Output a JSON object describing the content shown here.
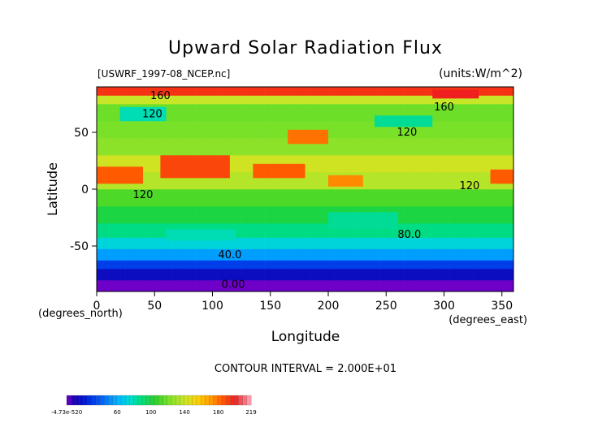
{
  "chart_data": {
    "type": "heatmap",
    "title": "Upward Solar Radiation Flux",
    "subtitle_left": "[USWRF_1997-08_NCEP.nc]",
    "subtitle_right": "(units:W/m^2)",
    "xlabel": "Longitude",
    "ylabel": "Latitude",
    "x_unit_label": "(degrees_east)",
    "y_unit_label": "(degrees_north)",
    "xlim": [
      0,
      360
    ],
    "ylim": [
      -90,
      90
    ],
    "x_ticks": [
      0,
      50,
      100,
      150,
      200,
      250,
      300,
      350
    ],
    "y_ticks": [
      -50,
      0,
      50
    ],
    "contour_interval_text": "CONTOUR INTERVAL = 2.000E+01",
    "contour_labels": [
      {
        "text": "160",
        "lon": 55,
        "lat": 82
      },
      {
        "text": "160",
        "lon": 300,
        "lat": 72
      },
      {
        "text": "120",
        "lon": 48,
        "lat": 66
      },
      {
        "text": "120",
        "lon": 268,
        "lat": 50
      },
      {
        "text": "120",
        "lon": 40,
        "lat": -5
      },
      {
        "text": "120",
        "lon": 322,
        "lat": 3
      },
      {
        "text": "80.0",
        "lon": 270,
        "lat": -40
      },
      {
        "text": "40.0",
        "lon": 115,
        "lat": -58
      },
      {
        "text": "0.00",
        "lon": 118,
        "lat": -84
      }
    ],
    "colorbar": {
      "min_label": "-4.73e-520",
      "max_label": "219",
      "tick_labels": [
        {
          "text": "60",
          "value": 60
        },
        {
          "text": "100",
          "value": 100
        },
        {
          "text": "140",
          "value": 140
        },
        {
          "text": "180",
          "value": 180
        }
      ],
      "vmin": 0,
      "vmax": 219
    },
    "latitude_bands": [
      {
        "lat_min": -90,
        "lat_max": -80,
        "value": 0
      },
      {
        "lat_min": -80,
        "lat_max": -70,
        "value": 15
      },
      {
        "lat_min": -70,
        "lat_max": -62,
        "value": 32
      },
      {
        "lat_min": -62,
        "lat_max": -52,
        "value": 55
      },
      {
        "lat_min": -52,
        "lat_max": -42,
        "value": 72
      },
      {
        "lat_min": -42,
        "lat_max": -30,
        "value": 88
      },
      {
        "lat_min": -30,
        "lat_max": -15,
        "value": 100
      },
      {
        "lat_min": -15,
        "lat_max": 0,
        "value": 112
      },
      {
        "lat_min": 0,
        "lat_max": 15,
        "value": 135
      },
      {
        "lat_min": 15,
        "lat_max": 30,
        "value": 142
      },
      {
        "lat_min": 30,
        "lat_max": 45,
        "value": 125
      },
      {
        "lat_min": 45,
        "lat_max": 60,
        "value": 120
      },
      {
        "lat_min": 60,
        "lat_max": 75,
        "value": 118
      },
      {
        "lat_min": 75,
        "lat_max": 82,
        "value": 140
      },
      {
        "lat_min": 82,
        "lat_max": 90,
        "value": 195
      }
    ],
    "hotspots": [
      {
        "lon_min": 0,
        "lon_max": 40,
        "lat_min": 5,
        "lat_max": 20,
        "value": 185
      },
      {
        "lon_min": 55,
        "lon_max": 115,
        "lat_min": 10,
        "lat_max": 30,
        "value": 190
      },
      {
        "lon_min": 135,
        "lon_max": 180,
        "lat_min": 10,
        "lat_max": 22,
        "value": 185
      },
      {
        "lon_min": 165,
        "lon_max": 200,
        "lat_min": 40,
        "lat_max": 52,
        "value": 180
      },
      {
        "lon_min": 200,
        "lon_max": 230,
        "lat_min": 2,
        "lat_max": 12,
        "value": 175
      },
      {
        "lon_min": 290,
        "lon_max": 330,
        "lat_min": 80,
        "lat_max": 88,
        "value": 200
      },
      {
        "lon_min": 340,
        "lon_max": 360,
        "lat_min": 5,
        "lat_max": 18,
        "value": 185
      },
      {
        "lon_min": 20,
        "lon_max": 60,
        "lat_min": 60,
        "lat_max": 72,
        "value": 80
      },
      {
        "lon_min": 240,
        "lon_max": 290,
        "lat_min": 55,
        "lat_max": 65,
        "value": 85
      },
      {
        "lon_min": 200,
        "lon_max": 260,
        "lat_min": -35,
        "lat_max": -20,
        "value": 85
      },
      {
        "lon_min": 60,
        "lon_max": 120,
        "lat_min": -45,
        "lat_max": -35,
        "value": 80
      }
    ]
  }
}
